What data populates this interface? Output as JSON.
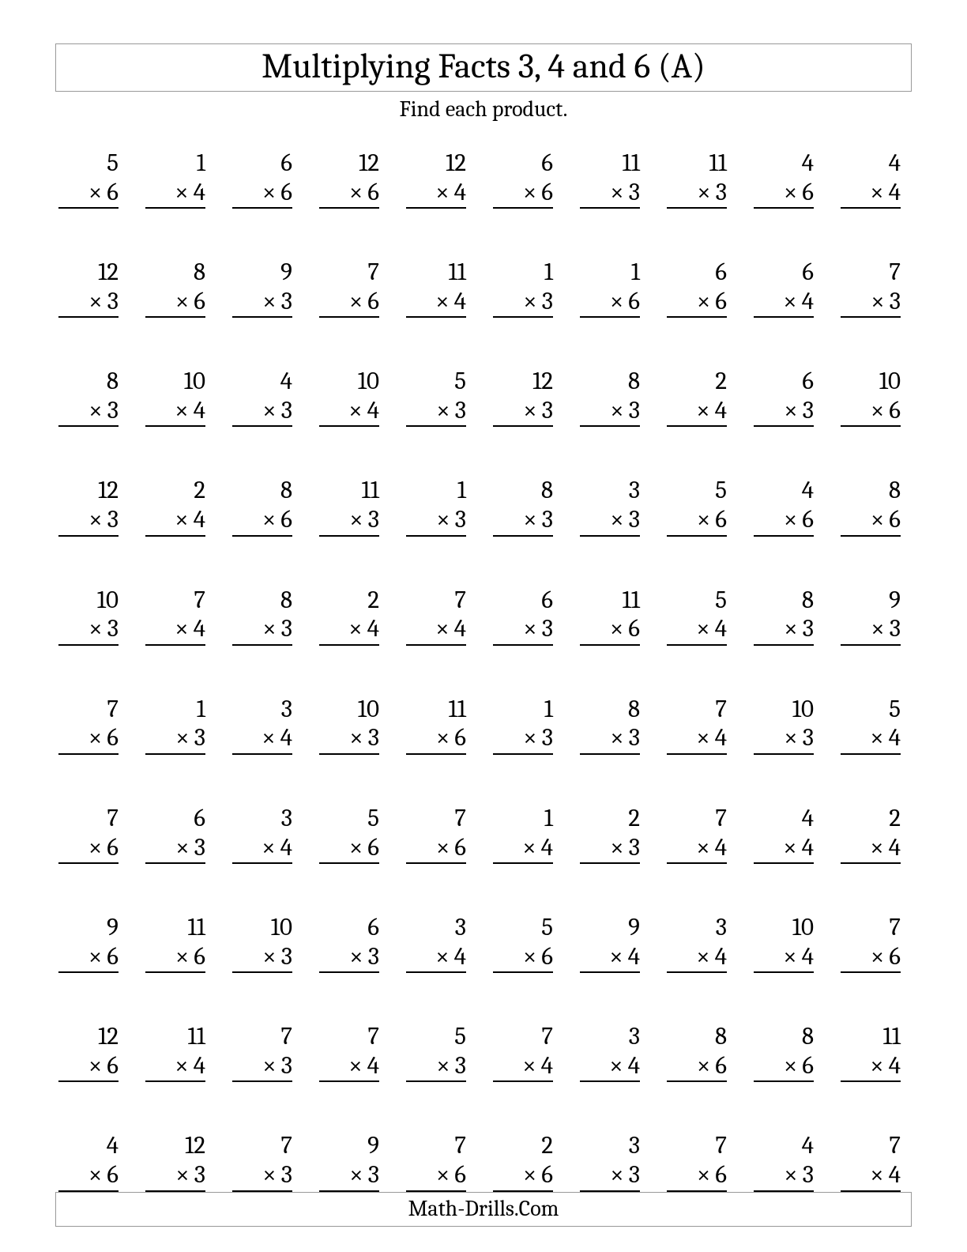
{
  "title": "Multiplying Facts 3, 4 and 6 (A)",
  "subtitle": "Find each product.",
  "footer": "Math-Drills.Com",
  "mult_sign": "×",
  "columns": 10,
  "text_color": "#000000",
  "background_color": "#ffffff",
  "border_color": "#999999",
  "title_fontsize": 44,
  "subtitle_fontsize": 28,
  "problem_fontsize": 31,
  "footer_fontsize": 28,
  "problems": [
    {
      "a": 5,
      "b": 6
    },
    {
      "a": 1,
      "b": 4
    },
    {
      "a": 6,
      "b": 6
    },
    {
      "a": 12,
      "b": 6
    },
    {
      "a": 12,
      "b": 4
    },
    {
      "a": 6,
      "b": 6
    },
    {
      "a": 11,
      "b": 3
    },
    {
      "a": 11,
      "b": 3
    },
    {
      "a": 4,
      "b": 6
    },
    {
      "a": 4,
      "b": 4
    },
    {
      "a": 12,
      "b": 3
    },
    {
      "a": 8,
      "b": 6
    },
    {
      "a": 9,
      "b": 3
    },
    {
      "a": 7,
      "b": 6
    },
    {
      "a": 11,
      "b": 4
    },
    {
      "a": 1,
      "b": 3
    },
    {
      "a": 1,
      "b": 6
    },
    {
      "a": 6,
      "b": 6
    },
    {
      "a": 6,
      "b": 4
    },
    {
      "a": 7,
      "b": 3
    },
    {
      "a": 8,
      "b": 3
    },
    {
      "a": 10,
      "b": 4
    },
    {
      "a": 4,
      "b": 3
    },
    {
      "a": 10,
      "b": 4
    },
    {
      "a": 5,
      "b": 3
    },
    {
      "a": 12,
      "b": 3
    },
    {
      "a": 8,
      "b": 3
    },
    {
      "a": 2,
      "b": 4
    },
    {
      "a": 6,
      "b": 3
    },
    {
      "a": 10,
      "b": 6
    },
    {
      "a": 12,
      "b": 3
    },
    {
      "a": 2,
      "b": 4
    },
    {
      "a": 8,
      "b": 6
    },
    {
      "a": 11,
      "b": 3
    },
    {
      "a": 1,
      "b": 3
    },
    {
      "a": 8,
      "b": 3
    },
    {
      "a": 3,
      "b": 3
    },
    {
      "a": 5,
      "b": 6
    },
    {
      "a": 4,
      "b": 6
    },
    {
      "a": 8,
      "b": 6
    },
    {
      "a": 10,
      "b": 3
    },
    {
      "a": 7,
      "b": 4
    },
    {
      "a": 8,
      "b": 3
    },
    {
      "a": 2,
      "b": 4
    },
    {
      "a": 7,
      "b": 4
    },
    {
      "a": 6,
      "b": 3
    },
    {
      "a": 11,
      "b": 6
    },
    {
      "a": 5,
      "b": 4
    },
    {
      "a": 8,
      "b": 3
    },
    {
      "a": 9,
      "b": 3
    },
    {
      "a": 7,
      "b": 6
    },
    {
      "a": 1,
      "b": 3
    },
    {
      "a": 3,
      "b": 4
    },
    {
      "a": 10,
      "b": 3
    },
    {
      "a": 11,
      "b": 6
    },
    {
      "a": 1,
      "b": 3
    },
    {
      "a": 8,
      "b": 3
    },
    {
      "a": 7,
      "b": 4
    },
    {
      "a": 10,
      "b": 3
    },
    {
      "a": 5,
      "b": 4
    },
    {
      "a": 7,
      "b": 6
    },
    {
      "a": 6,
      "b": 3
    },
    {
      "a": 3,
      "b": 4
    },
    {
      "a": 5,
      "b": 6
    },
    {
      "a": 7,
      "b": 6
    },
    {
      "a": 1,
      "b": 4
    },
    {
      "a": 2,
      "b": 3
    },
    {
      "a": 7,
      "b": 4
    },
    {
      "a": 4,
      "b": 4
    },
    {
      "a": 2,
      "b": 4
    },
    {
      "a": 9,
      "b": 6
    },
    {
      "a": 11,
      "b": 6
    },
    {
      "a": 10,
      "b": 3
    },
    {
      "a": 6,
      "b": 3
    },
    {
      "a": 3,
      "b": 4
    },
    {
      "a": 5,
      "b": 6
    },
    {
      "a": 9,
      "b": 4
    },
    {
      "a": 3,
      "b": 4
    },
    {
      "a": 10,
      "b": 4
    },
    {
      "a": 7,
      "b": 6
    },
    {
      "a": 12,
      "b": 6
    },
    {
      "a": 11,
      "b": 4
    },
    {
      "a": 7,
      "b": 3
    },
    {
      "a": 7,
      "b": 4
    },
    {
      "a": 5,
      "b": 3
    },
    {
      "a": 7,
      "b": 4
    },
    {
      "a": 3,
      "b": 4
    },
    {
      "a": 8,
      "b": 6
    },
    {
      "a": 8,
      "b": 6
    },
    {
      "a": 11,
      "b": 4
    },
    {
      "a": 4,
      "b": 6
    },
    {
      "a": 12,
      "b": 3
    },
    {
      "a": 7,
      "b": 3
    },
    {
      "a": 9,
      "b": 3
    },
    {
      "a": 7,
      "b": 6
    },
    {
      "a": 2,
      "b": 6
    },
    {
      "a": 3,
      "b": 3
    },
    {
      "a": 7,
      "b": 6
    },
    {
      "a": 4,
      "b": 3
    },
    {
      "a": 7,
      "b": 4
    }
  ]
}
